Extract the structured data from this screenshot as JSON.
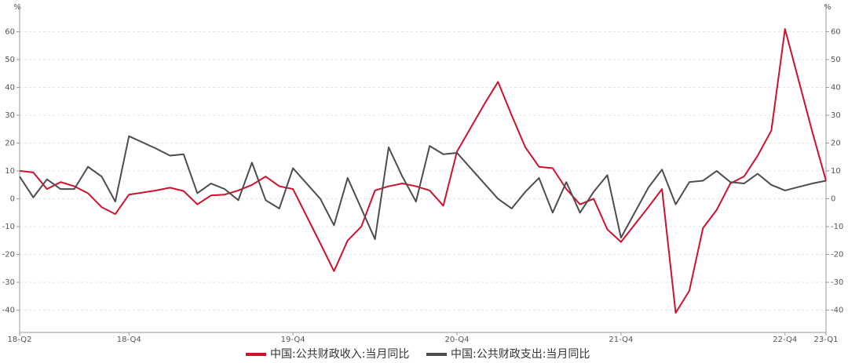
{
  "chart_data": {
    "type": "line",
    "y_label": "%",
    "y2_label": "%",
    "x": [
      0,
      1,
      2,
      3,
      4,
      5,
      6,
      7,
      8,
      10,
      11,
      12,
      13,
      14,
      15,
      16,
      17,
      18,
      19,
      20,
      22,
      23,
      24,
      25,
      26,
      27,
      28,
      29,
      30,
      31,
      32,
      34,
      35,
      36,
      37,
      38,
      39,
      40,
      41,
      42,
      43,
      44,
      46,
      47,
      48,
      49,
      50,
      51,
      52,
      53,
      54,
      55,
      56,
      58,
      59
    ],
    "xlim": [
      0,
      59
    ],
    "xticks": [
      {
        "value": 0,
        "label": "18-Q2"
      },
      {
        "value": 8,
        "label": "18-Q4"
      },
      {
        "value": 20,
        "label": "19-Q4"
      },
      {
        "value": 32,
        "label": "20-Q4"
      },
      {
        "value": 44,
        "label": "21-Q4"
      },
      {
        "value": 56,
        "label": "22-Q4"
      },
      {
        "value": 59,
        "label": "23-Q1"
      }
    ],
    "ylim": [
      -48,
      70
    ],
    "yticks": [
      -40,
      -30,
      -20,
      -10,
      0,
      10,
      20,
      30,
      40,
      50,
      60
    ],
    "y2lim": [
      -48,
      70
    ],
    "y2ticks": [
      -40,
      -30,
      -20,
      -10,
      0,
      10,
      20,
      30,
      40,
      50,
      60
    ],
    "grid": true,
    "legend": "bottom",
    "series": [
      {
        "name": "中国:公共财政收入:当月同比",
        "color": "#d0112b",
        "values": [
          10,
          9.5,
          3.5,
          6,
          4.5,
          2,
          -3,
          -5.5,
          1.5,
          3,
          4,
          2.8,
          -2,
          1.2,
          1.5,
          3,
          5,
          8,
          4.5,
          3.5,
          -16,
          -26,
          -15,
          -10,
          3,
          4.5,
          5.5,
          4.5,
          3,
          -2.5,
          17,
          34,
          42,
          30,
          18.5,
          11.5,
          11,
          3.5,
          -2,
          0,
          -11,
          -15.5,
          -3,
          3.5,
          -41,
          -33,
          -10.5,
          -4,
          5.5,
          8,
          15.5,
          24.5,
          61,
          24,
          6.5
        ]
      },
      {
        "name": "中国:公共财政支出:当月同比",
        "color": "#4d4d4d",
        "values": [
          8,
          0.5,
          7,
          3.5,
          3.5,
          11.5,
          8,
          -1,
          22.5,
          18,
          15.5,
          16,
          2,
          5.5,
          3.5,
          -0.5,
          13,
          -0.5,
          -3.5,
          11,
          0,
          -9.5,
          7.5,
          -3.5,
          -14.5,
          18.5,
          8,
          -1,
          19,
          16,
          16.5,
          5.5,
          0,
          -3.5,
          2.5,
          7.5,
          -5,
          6,
          -5,
          2.5,
          8.5,
          -14,
          4,
          10.5,
          -2,
          6,
          6.5,
          10,
          6,
          5.5,
          9,
          5,
          3,
          5.5,
          6.5
        ]
      }
    ]
  }
}
